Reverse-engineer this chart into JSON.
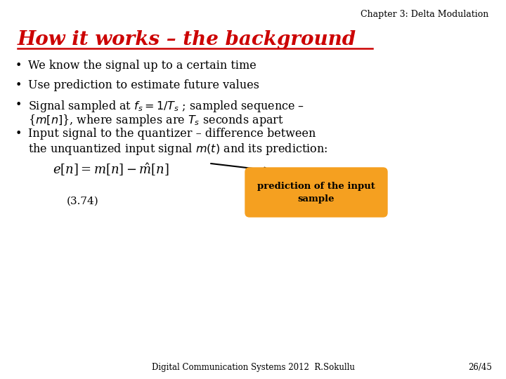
{
  "background_color": "#ffffff",
  "header_text": "Chapter 3: Delta Modulation",
  "header_fontsize": 9,
  "header_color": "#000000",
  "title_text": "How it works – the background",
  "title_fontsize": 20,
  "title_color": "#cc0000",
  "bullet_fontsize": 11.5,
  "bullet_color": "#000000",
  "equation_text": "$e[n] = m[n] - \\hat{m}[n]$",
  "equation_fontsize": 13,
  "eq_number": "(3.74)",
  "eq_number_fontsize": 11,
  "callout_text": "prediction of the input\nsample",
  "callout_bg": "#f5a020",
  "callout_fontsize": 9.5,
  "footer_text": "Digital Communication Systems 2012  R.Sokullu",
  "footer_right": "26/45",
  "footer_fontsize": 8.5,
  "footer_color": "#000000",
  "bullet_points_line1": [
    "We know the signal up to a certain time",
    "Use prediction to estimate future values"
  ],
  "bullet_point3_line1": "Signal sampled at $f_s= 1/T_s$ ; sampled sequence –",
  "bullet_point3_line2": "{$m[n]$}, where samples are $T_s$ seconds apart",
  "bullet_point4_line1": "Input signal to the quantizer – difference between",
  "bullet_point4_line2": "the unquantized input signal $m(t)$ and its prediction:"
}
